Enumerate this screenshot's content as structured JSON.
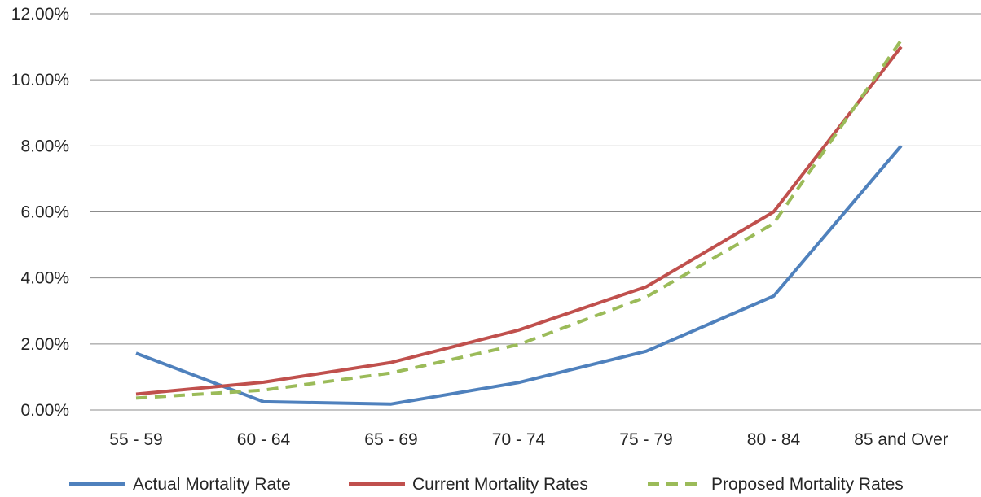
{
  "chart_data": {
    "type": "line",
    "title": "",
    "xlabel": "",
    "ylabel": "",
    "categories": [
      "55 - 59",
      "60 - 64",
      "65 - 69",
      "70 - 74",
      "75 - 79",
      "80 - 84",
      "85 and Over"
    ],
    "ylim": [
      0,
      12
    ],
    "ytick_values": [
      0,
      2,
      4,
      6,
      8,
      10,
      12
    ],
    "ytick_labels": [
      "0.00%",
      "2.00%",
      "4.00%",
      "6.00%",
      "8.00%",
      "10.00%",
      "12.00%"
    ],
    "grid": true,
    "legend_position": "bottom",
    "series": [
      {
        "name": "Actual Mortality Rate",
        "color": "#4f81bd",
        "dash": "solid",
        "values": [
          1.72,
          0.25,
          0.18,
          0.83,
          1.78,
          3.45,
          8.0
        ]
      },
      {
        "name": "Current Mortality Rates",
        "color": "#c0504d",
        "dash": "solid",
        "values": [
          0.48,
          0.84,
          1.44,
          2.42,
          3.73,
          6.0,
          11.0
        ]
      },
      {
        "name": "Proposed Mortality Rates",
        "color": "#9bbb59",
        "dash": "dashed",
        "values": [
          0.36,
          0.6,
          1.12,
          1.98,
          3.42,
          5.65,
          11.2
        ]
      }
    ]
  }
}
